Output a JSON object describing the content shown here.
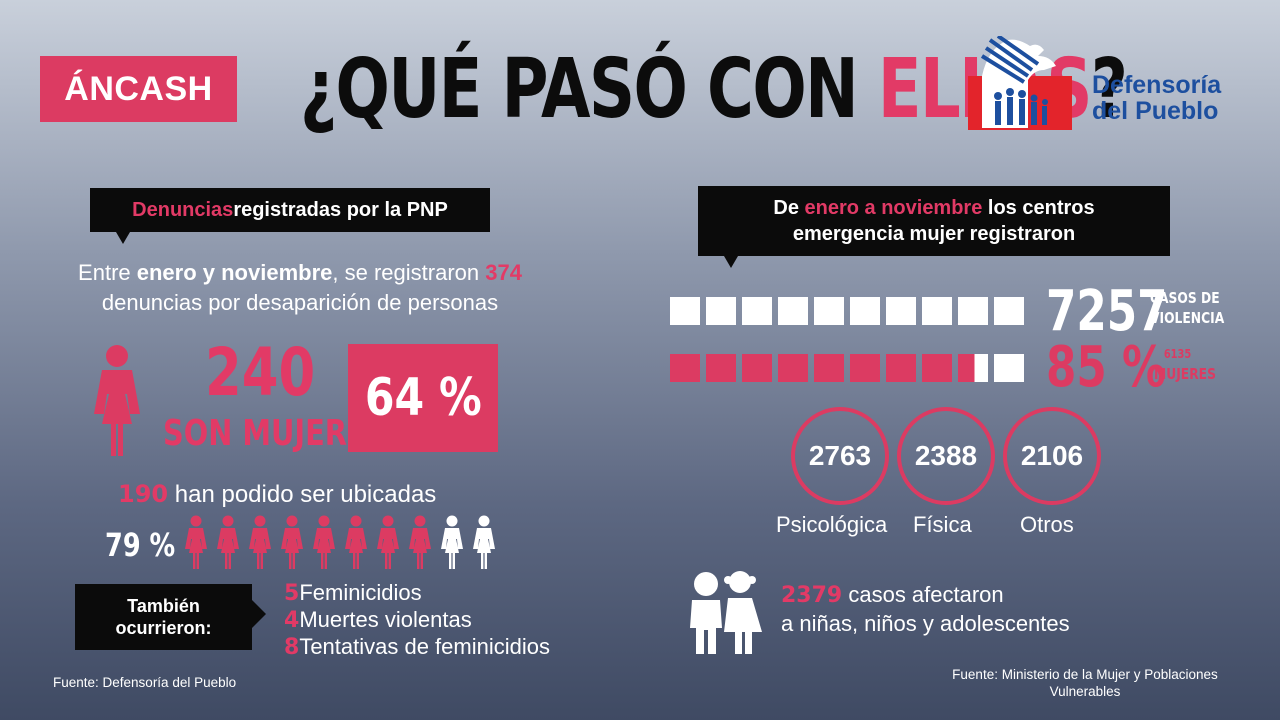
{
  "header": {
    "region": "ÁNCASH",
    "title_part1": "¿QUÉ PASÓ CON ",
    "title_ellas": "ELLAS",
    "title_end": "?",
    "logo_line1": "Defensoría",
    "logo_line2": "del Pueblo"
  },
  "left": {
    "callout_highlight": "Denuncias",
    "callout_rest": " registradas por la PNP",
    "intro_line1_a": "Entre ",
    "intro_line1_b": "enero y noviembre",
    "intro_line1_c": ", se registraron ",
    "intro_line1_d": "374",
    "intro_line2": "denuncias por desaparición de personas",
    "women_count": "240",
    "women_label": "SON MUJERES",
    "women_pct": "64 %",
    "located_count": "190",
    "located_label": " han podido ser ubicadas",
    "located_pct": "79 %",
    "located_fraction": 0.79,
    "also_callout_line1": "También",
    "also_callout_line2": "ocurrieron:",
    "also_items": [
      {
        "num": "5",
        "label": "Feminicidios"
      },
      {
        "num": "4",
        "label": "Muertes violentas"
      },
      {
        "num": "8",
        "label": "Tentativas de feminicidios"
      }
    ],
    "source": "Fuente: Defensoría del Pueblo"
  },
  "right": {
    "callout_a": "De ",
    "callout_b": "enero a noviembre",
    "callout_c": " los centros",
    "callout_line2": "emergencia mujer registraron",
    "cases_total": "7257",
    "cases_label1": "CASOS DE",
    "cases_label2": "VIOLENCIA",
    "women_pct": "85 %",
    "women_count": "6135",
    "women_label": "MUJERES",
    "women_fraction": 0.85,
    "categories": [
      {
        "value": "2763",
        "label": "Psicológica"
      },
      {
        "value": "2388",
        "label": "Física"
      },
      {
        "value": "2106",
        "label": "Otros"
      }
    ],
    "children_count": "2379",
    "children_line1": " casos afectaron",
    "children_line2": "a niñas, niños y adolescentes",
    "source_line1": "Fuente: Ministerio de la Mujer y Poblaciones",
    "source_line2": "Vulnerables"
  },
  "colors": {
    "accent": "#dc3b62",
    "dark": "#0b0b0b",
    "logo_blue": "#1d4f9f",
    "logo_red": "#e3242b"
  }
}
